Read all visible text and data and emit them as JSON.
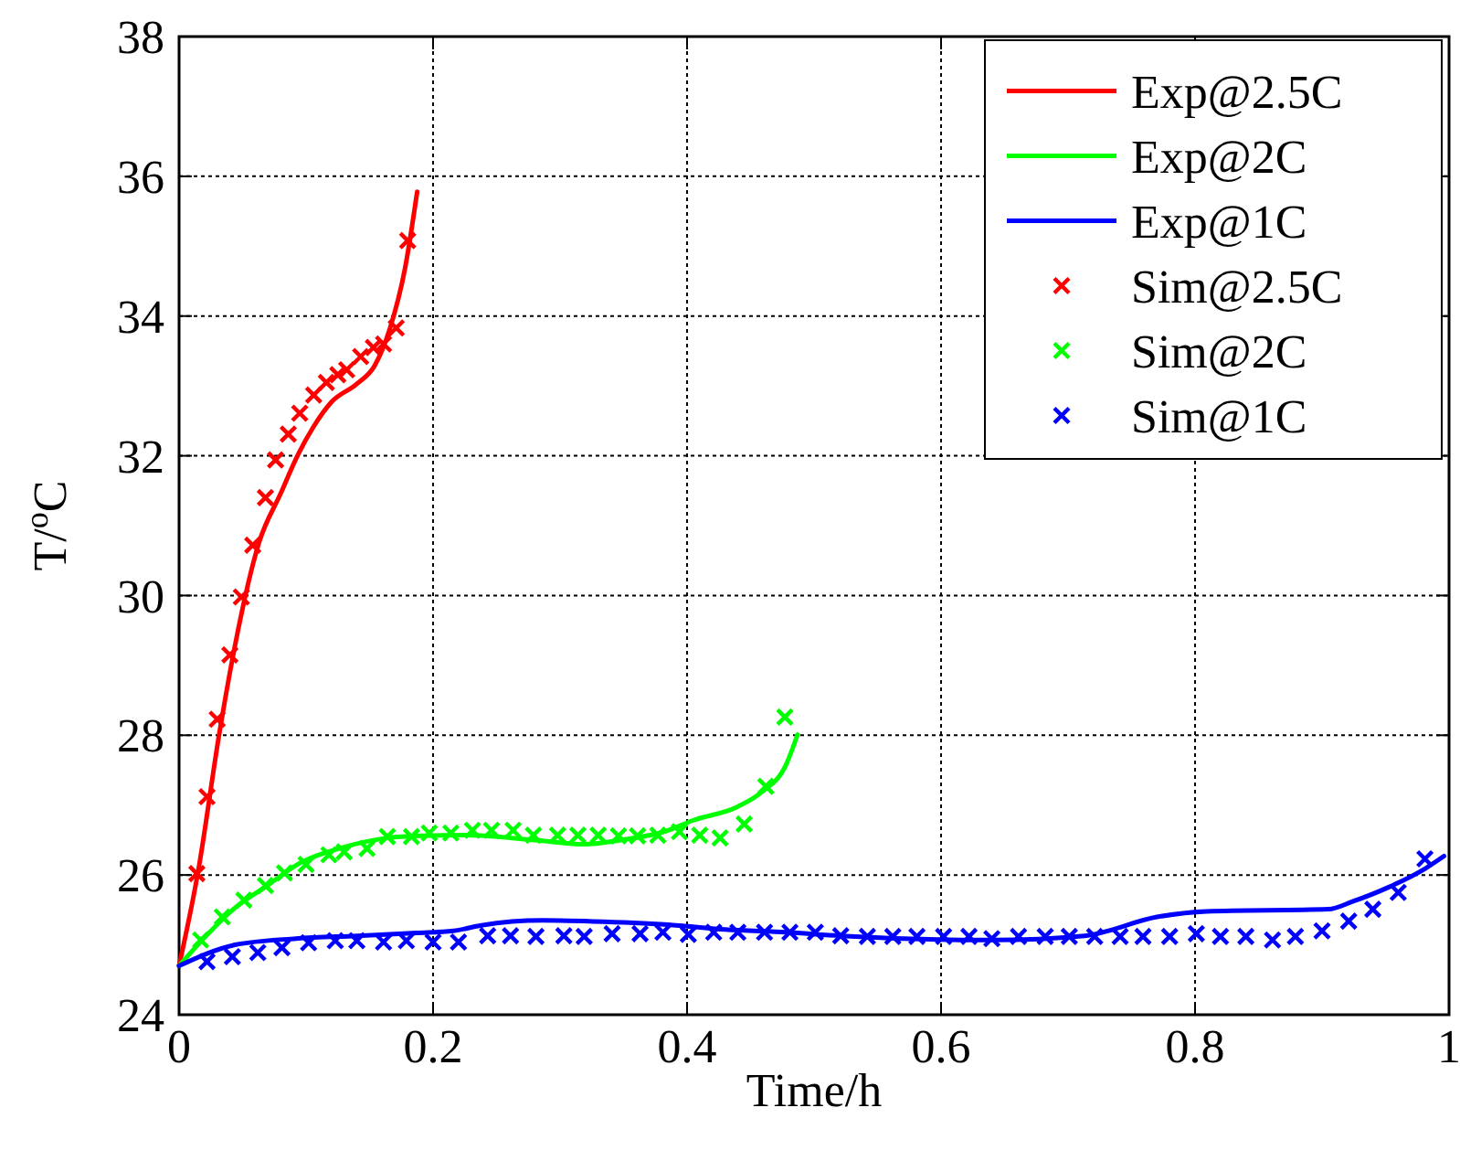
{
  "chart_data": {
    "type": "line",
    "xlabel": "Time/h",
    "ylabel": "T/$^{o}$C",
    "xlim": [
      0,
      1
    ],
    "ylim": [
      24,
      38
    ],
    "xticks": [
      0,
      0.2,
      0.4,
      0.6,
      0.8,
      1
    ],
    "yticks": [
      24,
      26,
      28,
      30,
      32,
      34,
      36,
      38
    ],
    "grid": true,
    "legend": "top right",
    "series": [
      {
        "name": "Exp@2.5C",
        "color": "#ff0000",
        "line_style": "solid",
        "x": [
          0,
          0.015,
          0.032,
          0.044,
          0.063,
          0.08,
          0.094,
          0.106,
          0.12,
          0.14,
          0.154,
          0.166,
          0.178,
          0.1875
        ],
        "values": [
          24.7,
          26.05,
          28.06,
          29.28,
          30.76,
          31.46,
          32.03,
          32.42,
          32.77,
          33.03,
          33.29,
          33.82,
          34.69,
          35.78
        ]
      },
      {
        "name": "Exp@2C",
        "color": "#00ff00",
        "line_style": "solid",
        "x": [
          0,
          0.024,
          0.044,
          0.068,
          0.096,
          0.13,
          0.164,
          0.19,
          0.226,
          0.262,
          0.286,
          0.319,
          0.348,
          0.382,
          0.406,
          0.439,
          0.459,
          0.478,
          0.487
        ],
        "values": [
          24.7,
          25.18,
          25.53,
          25.83,
          26.18,
          26.4,
          26.53,
          26.56,
          26.57,
          26.53,
          26.49,
          26.44,
          26.5,
          26.62,
          26.79,
          26.97,
          27.19,
          27.58,
          28.01
        ]
      },
      {
        "name": "Exp@1C",
        "color": "#0000ff",
        "line_style": "solid",
        "x": [
          0,
          0.044,
          0.092,
          0.14,
          0.187,
          0.216,
          0.238,
          0.286,
          0.334,
          0.391,
          0.43,
          0.478,
          0.521,
          0.641,
          0.713,
          0.77,
          0.809,
          0.905,
          0.924,
          0.953,
          0.981,
          0.996
        ],
        "values": [
          24.7,
          25.0,
          25.09,
          25.13,
          25.17,
          25.2,
          25.28,
          25.35,
          25.33,
          25.28,
          25.22,
          25.18,
          25.13,
          25.07,
          25.13,
          25.4,
          25.48,
          25.51,
          25.62,
          25.83,
          26.09,
          26.27
        ]
      },
      {
        "name": "Sim@2.5C",
        "type": "scatter",
        "marker": "cross",
        "color": "#ff0000",
        "x": [
          0.014,
          0.022,
          0.03,
          0.04,
          0.049,
          0.058,
          0.068,
          0.076,
          0.086,
          0.095,
          0.106,
          0.116,
          0.125,
          0.132,
          0.143,
          0.153,
          0.161,
          0.171,
          0.18
        ],
        "values": [
          26.02,
          27.12,
          28.23,
          29.15,
          29.98,
          30.72,
          31.4,
          31.94,
          32.31,
          32.61,
          32.87,
          33.05,
          33.16,
          33.23,
          33.42,
          33.55,
          33.6,
          33.83,
          35.08
        ]
      },
      {
        "name": "Sim@2C",
        "type": "scatter",
        "marker": "cross",
        "color": "#00ff00",
        "x": [
          0.017,
          0.034,
          0.051,
          0.068,
          0.083,
          0.1,
          0.118,
          0.13,
          0.148,
          0.164,
          0.183,
          0.197,
          0.214,
          0.231,
          0.246,
          0.263,
          0.279,
          0.298,
          0.314,
          0.33,
          0.346,
          0.361,
          0.377,
          0.394,
          0.41,
          0.426,
          0.445,
          0.462,
          0.477
        ],
        "values": [
          25.07,
          25.4,
          25.64,
          25.85,
          26.03,
          26.15,
          26.29,
          26.33,
          26.38,
          26.55,
          26.55,
          26.6,
          26.6,
          26.64,
          26.64,
          26.64,
          26.57,
          26.57,
          26.57,
          26.57,
          26.56,
          26.56,
          26.57,
          26.62,
          26.57,
          26.53,
          26.73,
          27.27,
          28.26
        ]
      },
      {
        "name": "Sim@1C",
        "type": "scatter",
        "marker": "cross",
        "color": "#0000ff",
        "x": [
          0.022,
          0.042,
          0.062,
          0.081,
          0.102,
          0.123,
          0.14,
          0.161,
          0.179,
          0.2,
          0.22,
          0.243,
          0.261,
          0.281,
          0.303,
          0.319,
          0.341,
          0.363,
          0.381,
          0.401,
          0.421,
          0.44,
          0.461,
          0.481,
          0.501,
          0.521,
          0.542,
          0.562,
          0.581,
          0.602,
          0.622,
          0.64,
          0.661,
          0.682,
          0.701,
          0.721,
          0.741,
          0.759,
          0.78,
          0.801,
          0.82,
          0.84,
          0.861,
          0.879,
          0.9,
          0.921,
          0.94,
          0.96,
          0.981
        ],
        "values": [
          24.76,
          24.83,
          24.89,
          24.96,
          25.03,
          25.06,
          25.06,
          25.04,
          25.06,
          25.04,
          25.04,
          25.13,
          25.13,
          25.12,
          25.13,
          25.12,
          25.16,
          25.16,
          25.18,
          25.15,
          25.18,
          25.18,
          25.18,
          25.18,
          25.18,
          25.13,
          25.12,
          25.12,
          25.12,
          25.12,
          25.12,
          25.09,
          25.12,
          25.12,
          25.12,
          25.12,
          25.12,
          25.12,
          25.12,
          25.16,
          25.12,
          25.12,
          25.07,
          25.12,
          25.2,
          25.34,
          25.51,
          25.75,
          26.23
        ]
      }
    ]
  }
}
